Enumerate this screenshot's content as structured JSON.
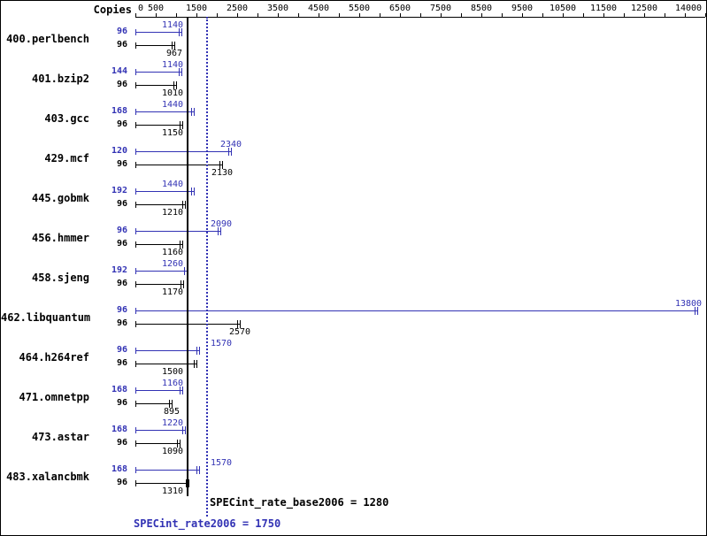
{
  "chart_data": {
    "type": "bar",
    "orientation": "horizontal",
    "title": "",
    "copies_column_label": "Copies",
    "axis": {
      "min": 0,
      "max": 14000,
      "tick_interval": 500,
      "tick_labels": [
        "0",
        "500",
        "1500",
        "2500",
        "3500",
        "4500",
        "5500",
        "6500",
        "7500",
        "8500",
        "9500",
        "10500",
        "11500",
        "12500",
        "14000"
      ],
      "tick_label_values": [
        0,
        500,
        1500,
        2500,
        3500,
        4500,
        5500,
        6500,
        7500,
        8500,
        9500,
        10500,
        11500,
        12500,
        14000
      ]
    },
    "categories": [
      "400.perlbench",
      "401.bzip2",
      "403.gcc",
      "429.mcf",
      "445.gobmk",
      "456.hmmer",
      "458.sjeng",
      "462.libquantum",
      "464.h264ref",
      "471.omnetpp",
      "473.astar",
      "483.xalancbmk"
    ],
    "series": [
      {
        "name": "SPECint_rate2006",
        "role": "peak",
        "color": "#3232b4",
        "copies": [
          96,
          144,
          168,
          120,
          192,
          96,
          192,
          96,
          96,
          168,
          168,
          168
        ],
        "values": [
          1140,
          1140,
          1440,
          2340,
          1440,
          2090,
          1260,
          13800,
          1570,
          1160,
          1220,
          1570
        ]
      },
      {
        "name": "SPECint_rate_base2006",
        "role": "base",
        "color": "#000000",
        "copies": [
          96,
          96,
          96,
          96,
          96,
          96,
          96,
          96,
          96,
          96,
          96,
          96
        ],
        "values": [
          967,
          1010,
          1150,
          2130,
          1210,
          1160,
          1170,
          2570,
          1500,
          895,
          1090,
          1310
        ]
      }
    ],
    "reference_lines": [
      {
        "text": "SPECint_rate_base2006 = 1280",
        "value": 1280,
        "style": "solid",
        "color": "#000000"
      },
      {
        "text": "SPECint_rate2006 = 1750",
        "value": 1750,
        "style": "dotted",
        "color": "#3232b4"
      }
    ]
  }
}
